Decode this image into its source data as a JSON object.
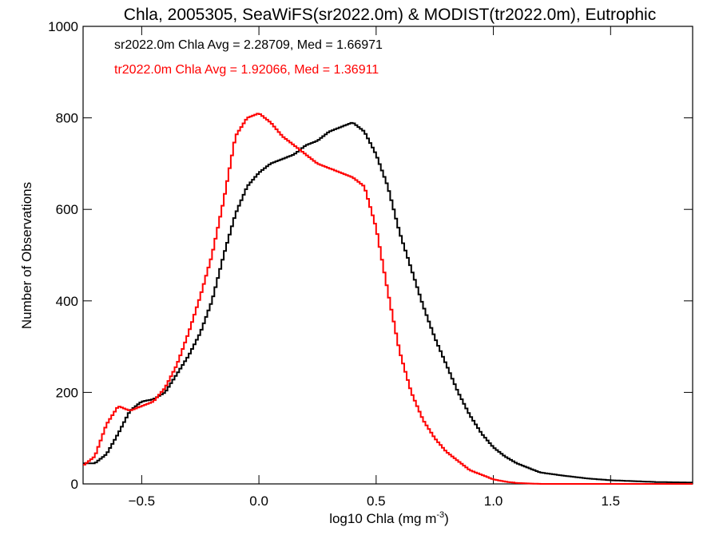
{
  "chart_data": {
    "type": "histogram",
    "title": "Chla, 2005305, SeaWiFS(sr2022.0m) & MODIST(tr2022.0m), Eutrophic",
    "xlabel": "log10 Chla (mg m",
    "xlabel_sup": "-3",
    "xlabel_suffix": ")",
    "ylabel": "Number of Observations",
    "xlim": [
      -0.75,
      1.85
    ],
    "ylim": [
      0,
      1000
    ],
    "x_ticks": [
      -0.5,
      0.0,
      0.5,
      1.0,
      1.5
    ],
    "x_tick_labels": [
      "−0.5",
      "0.0",
      "0.5",
      "1.0",
      "1.5"
    ],
    "y_ticks": [
      0,
      200,
      400,
      600,
      800,
      1000
    ],
    "y_tick_labels": [
      "0",
      "200",
      "400",
      "600",
      "800",
      "1000"
    ],
    "grid": false,
    "annotations": [
      {
        "text": "sr2022.0m Chla Avg = 2.28709, Med = 1.66971",
        "color": "#000000"
      },
      {
        "text": "tr2022.0m Chla Avg = 1.92066, Med = 1.36911",
        "color": "#ff0000"
      }
    ],
    "series": [
      {
        "color": "#000000",
        "x": [
          -0.75,
          -0.7,
          -0.65,
          -0.6,
          -0.55,
          -0.5,
          -0.45,
          -0.4,
          -0.35,
          -0.3,
          -0.25,
          -0.2,
          -0.15,
          -0.1,
          -0.05,
          0.0,
          0.05,
          0.1,
          0.15,
          0.2,
          0.25,
          0.3,
          0.35,
          0.4,
          0.45,
          0.5,
          0.55,
          0.6,
          0.65,
          0.7,
          0.75,
          0.8,
          0.85,
          0.9,
          0.95,
          1.0,
          1.05,
          1.1,
          1.15,
          1.2,
          1.3,
          1.4,
          1.5,
          1.6,
          1.7,
          1.85
        ],
        "y": [
          45,
          45,
          65,
          110,
          160,
          180,
          185,
          200,
          240,
          280,
          330,
          400,
          500,
          590,
          650,
          680,
          700,
          710,
          720,
          740,
          750,
          770,
          780,
          790,
          770,
          720,
          650,
          550,
          470,
          390,
          320,
          260,
          200,
          150,
          110,
          80,
          60,
          45,
          35,
          25,
          18,
          12,
          8,
          6,
          4,
          3
        ]
      },
      {
        "color": "#ff0000",
        "x": [
          -0.75,
          -0.7,
          -0.65,
          -0.6,
          -0.55,
          -0.5,
          -0.45,
          -0.4,
          -0.35,
          -0.3,
          -0.25,
          -0.2,
          -0.15,
          -0.1,
          -0.05,
          0.0,
          0.05,
          0.1,
          0.15,
          0.2,
          0.25,
          0.3,
          0.35,
          0.4,
          0.45,
          0.5,
          0.55,
          0.6,
          0.65,
          0.7,
          0.75,
          0.8,
          0.85,
          0.9,
          0.95,
          1.0,
          1.05,
          1.1,
          1.2
        ],
        "y": [
          40,
          60,
          130,
          170,
          160,
          170,
          180,
          210,
          260,
          330,
          410,
          500,
          620,
          760,
          800,
          810,
          790,
          760,
          740,
          720,
          700,
          690,
          680,
          670,
          650,
          560,
          420,
          290,
          200,
          140,
          100,
          70,
          50,
          30,
          20,
          10,
          5,
          2,
          0
        ]
      }
    ]
  }
}
